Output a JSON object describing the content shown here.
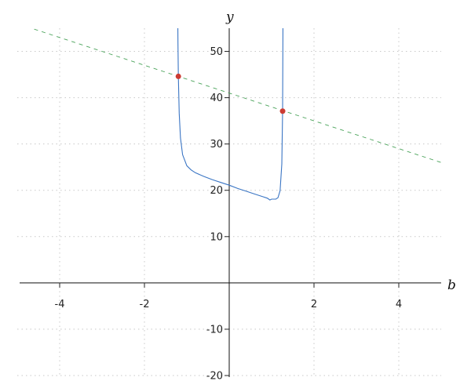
{
  "chart_data": {
    "type": "line",
    "title": "",
    "xlabel": "b",
    "ylabel": "y",
    "xlim": [
      -5,
      5
    ],
    "ylim": [
      -20,
      55
    ],
    "grid": true,
    "x_ticks": [
      -4,
      -2,
      2,
      4
    ],
    "y_ticks": [
      -20,
      -10,
      10,
      20,
      30,
      40,
      50
    ],
    "series": [
      {
        "style": "solid",
        "color": "#3a75c4",
        "x": [
          -1.225,
          -1.21,
          -1.2,
          -1.18,
          -1.15,
          -1.1,
          -1.0,
          -0.9,
          -0.8,
          -0.6,
          -0.4,
          -0.2,
          0,
          0.2,
          0.4,
          0.6,
          0.8,
          0.9,
          0.96,
          1.0,
          1.1,
          1.15,
          1.2,
          1.24,
          1.26,
          1.28
        ],
        "y": [
          73.1,
          51.8,
          44.6,
          36.6,
          31.3,
          27.7,
          25.3,
          24.4,
          23.8,
          23.0,
          22.3,
          21.7,
          21.1,
          20.4,
          19.8,
          19.2,
          18.6,
          18.3,
          17.9,
          18.1,
          18.1,
          18.4,
          19.9,
          25.7,
          37.1,
          83.0
        ]
      },
      {
        "style": "dashed",
        "color": "#4aa35a",
        "x": [
          -4.6,
          5
        ],
        "y": [
          54.8,
          26.0
        ]
      }
    ],
    "points": {
      "color": "#cc3b32",
      "x": [
        -1.2,
        1.26
      ],
      "y": [
        44.6,
        37.1
      ]
    }
  }
}
